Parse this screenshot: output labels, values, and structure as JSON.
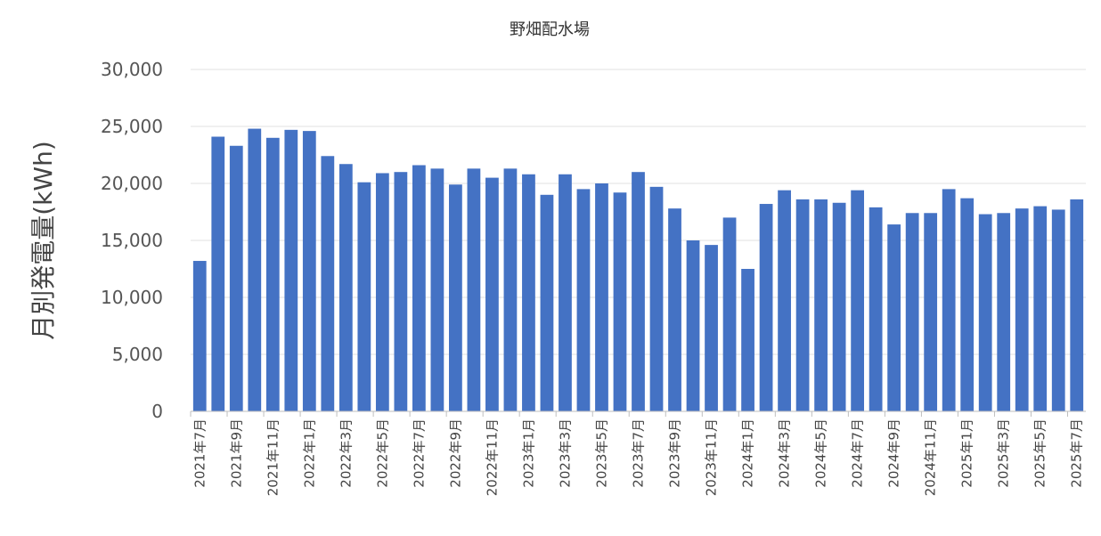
{
  "chart_data": {
    "type": "bar",
    "title": "野畑配水場",
    "xlabel": "",
    "ylabel": "月別発電量(kWh)",
    "ylim": [
      0,
      30000
    ],
    "yticks": [
      0,
      5000,
      10000,
      15000,
      20000,
      25000,
      30000
    ],
    "ytick_labels": [
      "0",
      "5,000",
      "10,000",
      "15,000",
      "20,000",
      "25,000",
      "30,000"
    ],
    "grid": true,
    "legend": "none",
    "bar_color": "#4472C4",
    "categories": [
      "2021年7月",
      "2021年8月",
      "2021年9月",
      "2021年10月",
      "2021年11月",
      "2021年12月",
      "2022年1月",
      "2022年2月",
      "2022年3月",
      "2022年4月",
      "2022年5月",
      "2022年6月",
      "2022年7月",
      "2022年8月",
      "2022年9月",
      "2022年10月",
      "2022年11月",
      "2022年12月",
      "2023年1月",
      "2023年2月",
      "2023年3月",
      "2023年4月",
      "2023年5月",
      "2023年6月",
      "2023年7月",
      "2023年8月",
      "2023年9月",
      "2023年10月",
      "2023年11月",
      "2023年12月",
      "2024年1月",
      "2024年2月",
      "2024年3月",
      "2024年4月",
      "2024年5月",
      "2024年6月",
      "2024年7月",
      "2024年8月",
      "2024年9月",
      "2024年10月",
      "2024年11月",
      "2024年12月",
      "2025年1月",
      "2025年2月",
      "2025年3月",
      "2025年4月",
      "2025年5月",
      "2025年6月",
      "2025年7月"
    ],
    "shown_category_labels": [
      "2021年7月",
      "2021年9月",
      "2021年11月",
      "2022年1月",
      "2022年3月",
      "2022年5月",
      "2022年7月",
      "2022年9月",
      "2022年11月",
      "2023年1月",
      "2023年3月",
      "2023年5月",
      "2023年7月",
      "2023年9月",
      "2023年11月",
      "2024年1月",
      "2024年3月",
      "2024年5月",
      "2024年7月",
      "2024年9月",
      "2024年11月",
      "2025年1月",
      "2025年3月",
      "2025年5月",
      "2025年7月"
    ],
    "values": [
      13200,
      24100,
      23300,
      24800,
      24000,
      24700,
      24600,
      22400,
      21700,
      20100,
      20900,
      21000,
      21600,
      21300,
      19900,
      21300,
      20500,
      21300,
      20800,
      19000,
      20800,
      19500,
      20000,
      19200,
      21000,
      19700,
      17800,
      15000,
      14600,
      17000,
      12500,
      18200,
      19400,
      18600,
      18600,
      18300,
      19400,
      17900,
      16400,
      17400,
      17400,
      19500,
      18700,
      17300,
      17400,
      17800,
      18000,
      17700,
      18600
    ]
  }
}
